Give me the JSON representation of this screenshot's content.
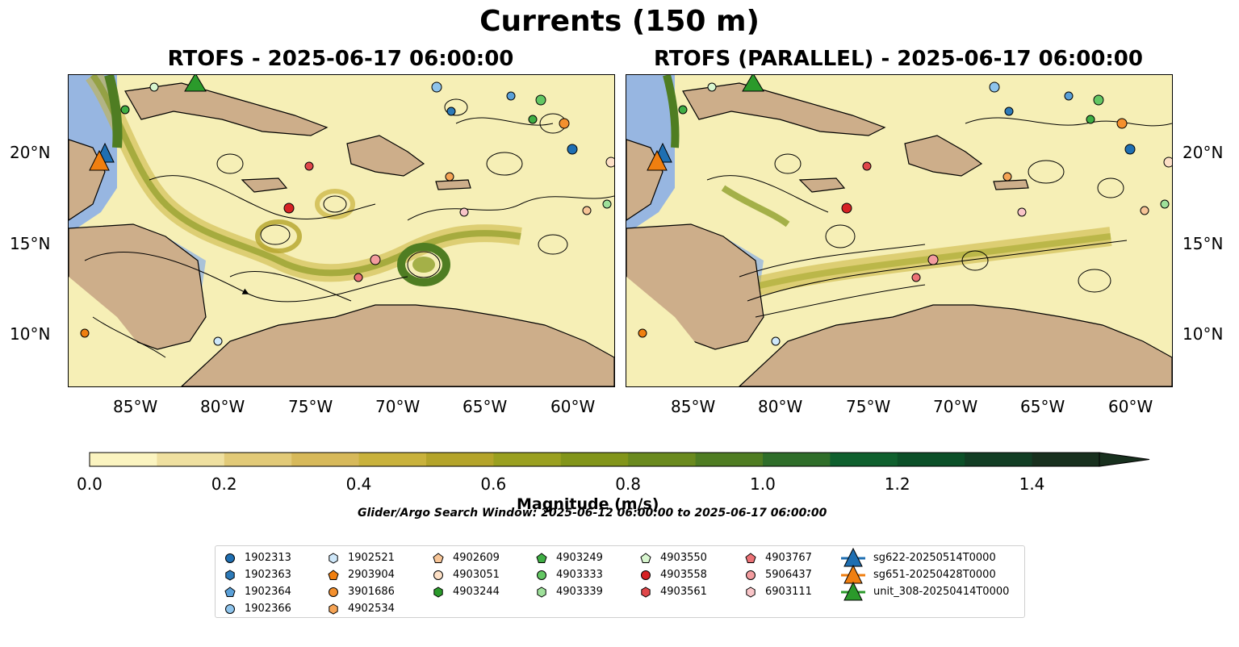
{
  "figure": {
    "title": "Currents (150 m)",
    "panels": [
      {
        "title": "RTOFS - 2025-06-17 06:00:00"
      },
      {
        "title": "RTOFS (PARALLEL) - 2025-06-17 06:00:00"
      }
    ],
    "lon_ticks": [
      "85°W",
      "80°W",
      "75°W",
      "70°W",
      "65°W",
      "60°W"
    ],
    "lat_ticks": [
      "20°N",
      "15°N",
      "10°N"
    ],
    "colors": {
      "land": "#cdae8a",
      "shallow": "#97b6e1",
      "ocean_low": "#f6efb6"
    }
  },
  "colorbar": {
    "label": "Magnitude (m/s)",
    "ticks": [
      "0.0",
      "0.2",
      "0.4",
      "0.6",
      "0.8",
      "1.0",
      "1.2",
      "1.4"
    ],
    "range": [
      0,
      1.5
    ],
    "extend": "max",
    "colors": [
      "#fbf4c0",
      "#efe0a0",
      "#e2ca78",
      "#d7b95a",
      "#c9b23c",
      "#b4a42a",
      "#9aa020",
      "#82951a",
      "#6a8a1e",
      "#4f7d22",
      "#2f6e2a",
      "#0f602e",
      "#0c5028",
      "#123e24",
      "#18301e"
    ]
  },
  "search_window": "Glider/Argo Search Window: 2025-06-12 06:00:00 to 2025-06-17 06:00:00",
  "legend": {
    "columns": [
      [
        {
          "label": "1902313",
          "marker": "circle",
          "color": "#1f6fb2"
        },
        {
          "label": "1902363",
          "marker": "hexagon",
          "color": "#2d7ab8"
        },
        {
          "label": "1902364",
          "marker": "pentagon",
          "color": "#5aa0d8"
        },
        {
          "label": "1902366",
          "marker": "circle",
          "color": "#8ec4ec"
        }
      ],
      [
        {
          "label": "1902521",
          "marker": "hexagon",
          "color": "#cfe8fa"
        },
        {
          "label": "2903904",
          "marker": "pentagon",
          "color": "#f07f10"
        },
        {
          "label": "3901686",
          "marker": "circle",
          "color": "#f4902e"
        },
        {
          "label": "4902534",
          "marker": "hexagon",
          "color": "#f6a455"
        }
      ],
      [
        {
          "label": "4902609",
          "marker": "pentagon",
          "color": "#f7c597"
        },
        {
          "label": "4903051",
          "marker": "circle",
          "color": "#fde0c6"
        },
        {
          "label": "4903244",
          "marker": "hexagon",
          "color": "#2b9a2b"
        }
      ],
      [
        {
          "label": "4903249",
          "marker": "pentagon",
          "color": "#3fae44"
        },
        {
          "label": "4903333",
          "marker": "circle",
          "color": "#63c763"
        },
        {
          "label": "4903339",
          "marker": "hexagon",
          "color": "#9ee09a"
        }
      ],
      [
        {
          "label": "4903550",
          "marker": "pentagon",
          "color": "#d8f6cf"
        },
        {
          "label": "4903558",
          "marker": "circle",
          "color": "#d62224"
        },
        {
          "label": "4903561",
          "marker": "hexagon",
          "color": "#e0474a"
        }
      ],
      [
        {
          "label": "4903767",
          "marker": "pentagon",
          "color": "#ec7276"
        },
        {
          "label": "5906437",
          "marker": "circle",
          "color": "#f39c9f"
        },
        {
          "label": "6903111",
          "marker": "hexagon",
          "color": "#f9c5c8"
        }
      ],
      [
        {
          "label": "sg622-20250514T0000",
          "marker": "triangle",
          "color": "#1f6fb2"
        },
        {
          "label": "sg651-20250428T0000",
          "marker": "triangle",
          "color": "#f07f10"
        },
        {
          "label": "unit_308-20250414T0000",
          "marker": "triangle",
          "color": "#2b9a2b"
        }
      ]
    ]
  }
}
